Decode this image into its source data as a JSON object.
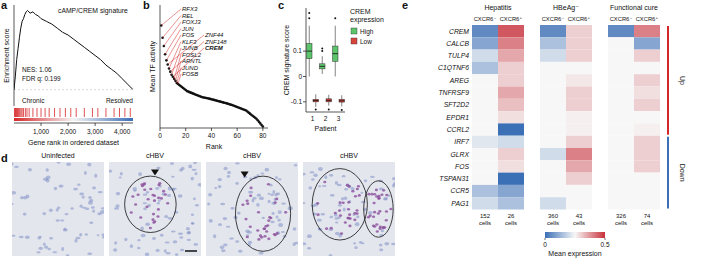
{
  "chart_data": [
    {
      "type": "line",
      "label": "a",
      "title": "cAMP/CREM signature",
      "y_label": "Enrichment score",
      "x_label": "Gene rank in ordered dataset",
      "annotations": [
        "NES: 1.06",
        "FDR q: 0.199"
      ],
      "group_labels": [
        "Chronic",
        "Resolved"
      ],
      "x": [
        0,
        50,
        100,
        150,
        200,
        250,
        300,
        350,
        400,
        450,
        500,
        600,
        700,
        800,
        900,
        1000,
        1200,
        1400,
        1600,
        1800,
        2000,
        2200,
        2400,
        2600,
        2800,
        3000,
        3200,
        3400,
        3600,
        3800,
        4000,
        4200,
        4400
      ],
      "values": [
        0,
        0.1,
        0.22,
        0.3,
        0.38,
        0.45,
        0.5,
        0.52,
        0.55,
        0.57,
        0.58,
        0.56,
        0.57,
        0.55,
        0.54,
        0.52,
        0.5,
        0.48,
        0.45,
        0.42,
        0.4,
        0.37,
        0.34,
        0.31,
        0.28,
        0.25,
        0.22,
        0.18,
        0.15,
        0.12,
        0.08,
        0.04,
        0
      ],
      "hits": [
        20,
        40,
        60,
        80,
        100,
        130,
        160,
        190,
        220,
        260,
        300,
        350,
        420,
        480,
        560,
        700,
        850,
        1000,
        1150,
        1300,
        1500,
        1700,
        1900,
        2100,
        2300,
        2600,
        2900,
        3100,
        3400,
        3700,
        3900,
        4100,
        4300
      ],
      "xlim": [
        0,
        4400
      ],
      "ylim": [
        -0.12,
        0.62
      ],
      "xticks": [
        {
          "value": 1000,
          "label": "1,000"
        },
        {
          "value": 2000,
          "label": "2,000"
        },
        {
          "value": 3000,
          "label": "3,000"
        },
        {
          "value": 4000,
          "label": "4,000"
        }
      ],
      "tick_labels": "x"
    },
    {
      "type": "scatter",
      "label": "b",
      "y_label": "Mean TF activity",
      "x_label": "Rank",
      "x": [
        1,
        2,
        3,
        4,
        5,
        6,
        7,
        8,
        9,
        10,
        11,
        12,
        13,
        14,
        15,
        16,
        17,
        18,
        19,
        20,
        21,
        22,
        23,
        24,
        25,
        26,
        27,
        28,
        29,
        30,
        31,
        32,
        33,
        34,
        35,
        36,
        37,
        38,
        39,
        40,
        41,
        42,
        43,
        44,
        45,
        46,
        47,
        48,
        49,
        50,
        51,
        52,
        53,
        54,
        55,
        56,
        57,
        58,
        59,
        60,
        61,
        62,
        63,
        64,
        65,
        66,
        67,
        68,
        69,
        70,
        71,
        72,
        73,
        74,
        75,
        76,
        77,
        78,
        79,
        80
      ],
      "values": [
        1.0,
        0.88,
        0.8,
        0.72,
        0.66,
        0.62,
        0.58,
        0.55,
        0.52,
        0.5,
        0.48,
        0.46,
        0.44,
        0.43,
        0.42,
        0.41,
        0.4,
        0.39,
        0.38,
        0.37,
        0.36,
        0.355,
        0.35,
        0.345,
        0.34,
        0.335,
        0.33,
        0.325,
        0.32,
        0.315,
        0.31,
        0.305,
        0.3,
        0.298,
        0.295,
        0.292,
        0.29,
        0.287,
        0.284,
        0.28,
        0.277,
        0.274,
        0.27,
        0.267,
        0.264,
        0.26,
        0.257,
        0.254,
        0.25,
        0.247,
        0.244,
        0.24,
        0.236,
        0.232,
        0.228,
        0.224,
        0.22,
        0.215,
        0.21,
        0.205,
        0.2,
        0.195,
        0.19,
        0.185,
        0.18,
        0.175,
        0.17,
        0.16,
        0.15,
        0.14,
        0.13,
        0.12,
        0.11,
        0.1,
        0.09,
        0.075,
        0.06,
        0.045,
        0.03,
        0.015
      ],
      "annotations": [
        {
          "text": "RFX3",
          "x": 1
        },
        {
          "text": "REL",
          "x": 2
        },
        {
          "text": "FOXJ3",
          "x": 3
        },
        {
          "text": "JUN",
          "x": 4
        },
        {
          "text": "FOS",
          "x": 5
        },
        {
          "text": "ZNF44",
          "x": 6
        },
        {
          "text": "KLF3",
          "x": 7
        },
        {
          "text": "ZNF148",
          "x": 8
        },
        {
          "text": "JUNB",
          "x": 9
        },
        {
          "text": "CREM",
          "x": 10,
          "bold": true
        },
        {
          "text": "FOSL2",
          "x": 11
        },
        {
          "text": "ARNTL",
          "x": 12
        },
        {
          "text": "JUND",
          "x": 13
        },
        {
          "text": "FOSB",
          "x": 14
        }
      ],
      "xlim": [
        0,
        84
      ],
      "ylim": [
        0,
        1.2
      ],
      "xticks": [
        0,
        20,
        40,
        60,
        80
      ],
      "tick_labels": "x"
    },
    {
      "type": "box",
      "label": "c",
      "y_label": "CREM signature score",
      "x_label": "Patient",
      "legend_title": "CREM expression",
      "categories": [
        "1",
        "2",
        "3"
      ],
      "ylim": [
        -0.14,
        0.27
      ],
      "yticks": [
        -0.1,
        0,
        0.1
      ],
      "series": [
        {
          "name": "High",
          "color": "#5cc46b",
          "boxes": [
            {
              "low": 0.0,
              "q1": 0.07,
              "median": 0.1,
              "q3": 0.13,
              "high": 0.2,
              "outliers": [
                0.23,
                0.25
              ]
            },
            {
              "low": 0.01,
              "q1": 0.03,
              "median": 0.04,
              "q3": 0.05,
              "high": 0.08,
              "outliers": [
                0.1,
                0.11
              ]
            },
            {
              "low": 0.0,
              "q1": 0.06,
              "median": 0.09,
              "q3": 0.12,
              "high": 0.2,
              "outliers": [
                0.23
              ]
            }
          ]
        },
        {
          "name": "Low",
          "color": "#d9453d",
          "boxes": [
            {
              "low": -0.12,
              "q1": -0.1,
              "median": -0.095,
              "q3": -0.09,
              "high": -0.07,
              "outliers": [
                -0.13
              ]
            },
            {
              "low": -0.115,
              "q1": -0.1,
              "median": -0.094,
              "q3": -0.088,
              "high": -0.072,
              "outliers": [
                -0.13
              ]
            },
            {
              "low": -0.118,
              "q1": -0.101,
              "median": -0.096,
              "q3": -0.09,
              "high": -0.074,
              "outliers": [
                -0.132
              ]
            }
          ]
        }
      ]
    },
    {
      "type": "image",
      "label": "d",
      "images": [
        "Uninfected",
        "cHBV",
        "cHBV",
        "cHBV"
      ]
    },
    {
      "type": "heatmap",
      "label": "e",
      "row_labels": [
        "CREM",
        "CALCB",
        "TULP4",
        "C1QTNF6",
        "AREG",
        "TNFRSF9",
        "SFT2D2",
        "EPDR1",
        "CCRL2",
        "IRF7",
        "GLRX",
        "FOS",
        "TSPAN31",
        "CCR5",
        "PAG1"
      ],
      "row_groups": [
        "Up",
        "Up",
        "Up",
        "Up",
        "Up",
        "Up",
        "Up",
        "Up",
        "Up",
        "Down",
        "Down",
        "Down",
        "Down",
        "Down",
        "Down"
      ],
      "count_unit": "cells",
      "panels": [
        {
          "title": "Hepatitis",
          "columns": [
            "CXCR6⁻",
            "CXCR6⁺"
          ],
          "cell_counts": [
            152,
            26
          ],
          "values": [
            [
              0.05,
              0.45
            ],
            [
              0.1,
              0.4
            ],
            [
              0.2,
              0.35
            ],
            [
              0.15,
              0.3
            ],
            [
              0.25,
              0.3
            ],
            [
              0.25,
              0.35
            ],
            [
              0.25,
              0.32
            ],
            [
              0.25,
              0.28
            ],
            [
              0.25,
              0.0
            ],
            [
              0.22,
              0.2
            ],
            [
              0.25,
              0.3
            ],
            [
              0.25,
              0.28
            ],
            [
              0.25,
              0.0
            ],
            [
              0.15,
              0.1
            ],
            [
              0.2,
              0.15
            ]
          ]
        },
        {
          "title": "HBeAg⁻",
          "columns": [
            "CXCR6⁻",
            "CXCR6⁺"
          ],
          "cell_counts": [
            360,
            43
          ],
          "values": [
            [
              0.05,
              0.3
            ],
            [
              0.15,
              0.3
            ],
            [
              0.2,
              0.3
            ],
            [
              0.25,
              0.25
            ],
            [
              0.25,
              0.27
            ],
            [
              0.25,
              0.3
            ],
            [
              0.25,
              0.3
            ],
            [
              0.25,
              0.26
            ],
            [
              0.25,
              0.26
            ],
            [
              0.25,
              0.3
            ],
            [
              0.2,
              0.4
            ],
            [
              0.25,
              0.35
            ],
            [
              0.25,
              0.3
            ],
            [
              0.25,
              0.25
            ],
            [
              0.2,
              0.25
            ]
          ]
        },
        {
          "title": "Functional cure",
          "columns": [
            "CXCR6⁻",
            "CXCR6⁺"
          ],
          "cell_counts": [
            326,
            74
          ],
          "values": [
            [
              0.05,
              0.4
            ],
            [
              0.25,
              0.1
            ],
            [
              0.25,
              0.3
            ],
            [
              0.25,
              0.25
            ],
            [
              0.25,
              0.3
            ],
            [
              0.25,
              0.28
            ],
            [
              0.25,
              0.3
            ],
            [
              0.25,
              0.25
            ],
            [
              0.25,
              0.26
            ],
            [
              0.25,
              0.3
            ],
            [
              0.25,
              0.3
            ],
            [
              0.25,
              0.3
            ],
            [
              0.25,
              0.25
            ],
            [
              0.25,
              0.25
            ],
            [
              0.25,
              0.25
            ]
          ]
        }
      ],
      "colorbar": {
        "label": "Mean expression",
        "range": [
          0,
          0.5
        ],
        "ticks": [
          0,
          0.5
        ]
      }
    }
  ]
}
